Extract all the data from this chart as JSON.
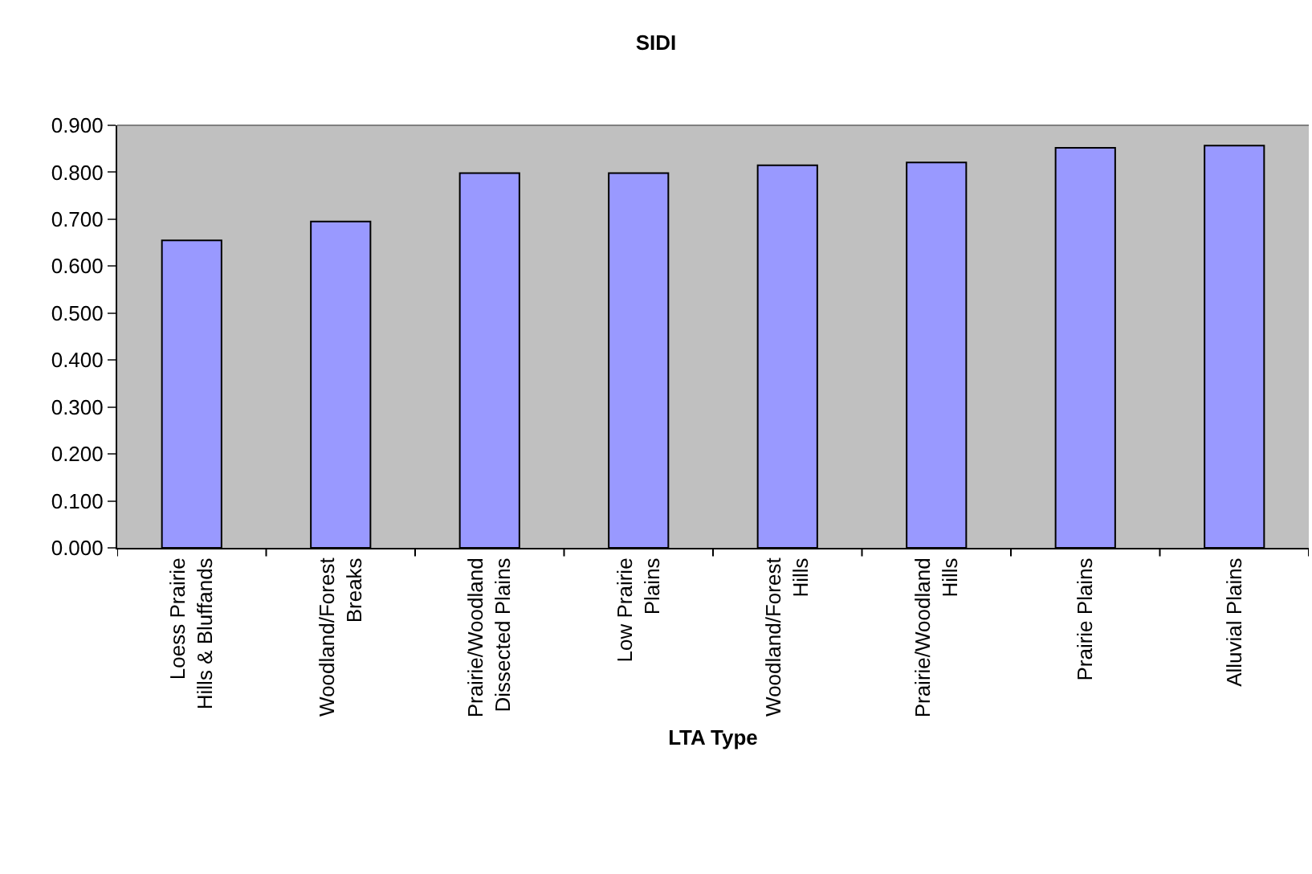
{
  "chart_data": {
    "type": "bar",
    "title": "SIDI",
    "xlabel": "LTA Type",
    "categories": [
      "Loess Prairie\nHills & Bluffands",
      "Woodland/Forest\nBreaks",
      "Prairie/Woodland\nDissected Plains",
      "Low Prairie\nPlains",
      "Woodland/Forest\nHills",
      "Prairie/Woodland\nHills",
      "Prairie Plains",
      "Alluvial Plains"
    ],
    "values": [
      0.655,
      0.695,
      0.798,
      0.798,
      0.815,
      0.821,
      0.852,
      0.857
    ],
    "color": "#9999ff",
    "ylim": [
      0,
      0.9
    ],
    "yticks": [
      {
        "value": 0,
        "label": "0.000"
      },
      {
        "value": 0.1,
        "label": "0.100"
      },
      {
        "value": 0.2,
        "label": "0.200"
      },
      {
        "value": 0.3,
        "label": "0.300"
      },
      {
        "value": 0.4,
        "label": "0.400"
      },
      {
        "value": 0.5,
        "label": "0.500"
      },
      {
        "value": 0.6,
        "label": "0.600"
      },
      {
        "value": 0.7,
        "label": "0.700"
      },
      {
        "value": 0.8,
        "label": "0.800"
      },
      {
        "value": 0.9,
        "label": "0.900"
      }
    ],
    "grid": false
  }
}
